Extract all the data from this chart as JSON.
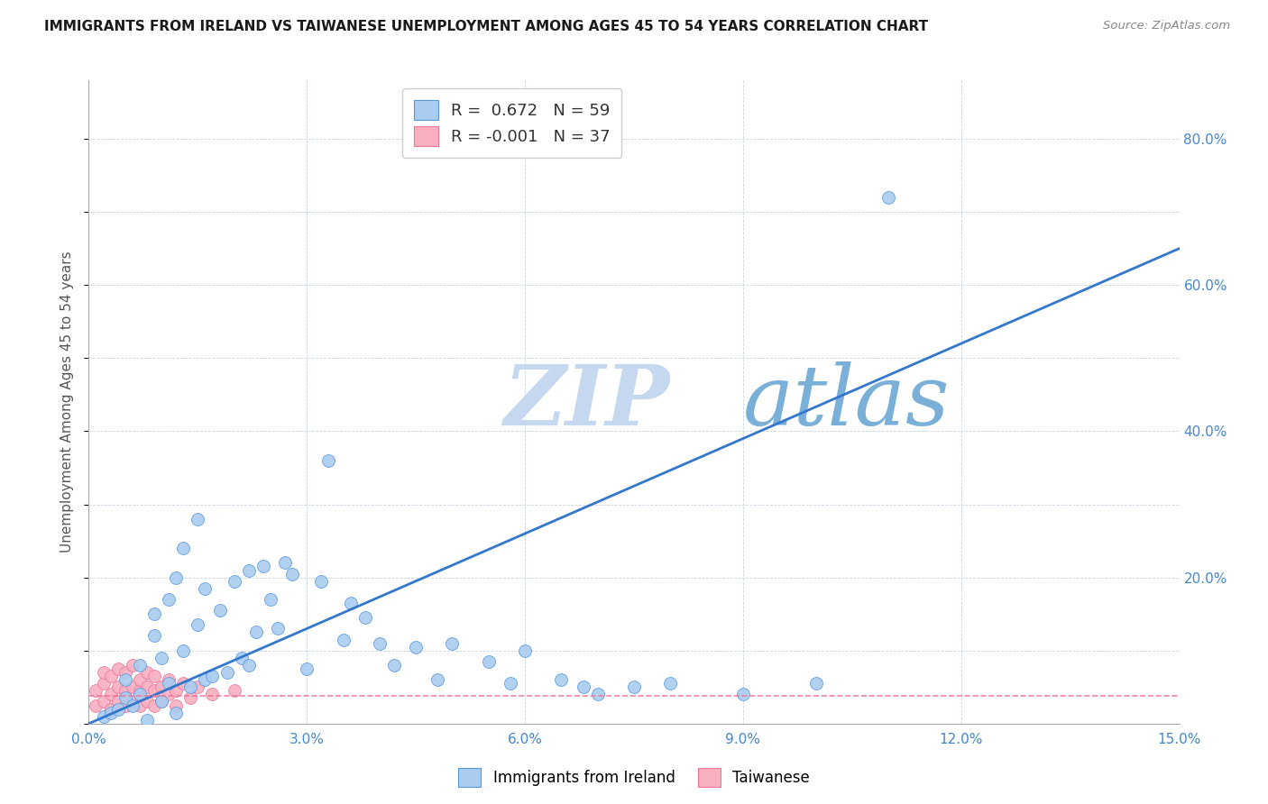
{
  "title": "IMMIGRANTS FROM IRELAND VS TAIWANESE UNEMPLOYMENT AMONG AGES 45 TO 54 YEARS CORRELATION CHART",
  "source": "Source: ZipAtlas.com",
  "ylabel": "Unemployment Among Ages 45 to 54 years",
  "xlim": [
    0.0,
    0.15
  ],
  "ylim": [
    0.0,
    0.88
  ],
  "xticks": [
    0.0,
    0.03,
    0.06,
    0.09,
    0.12,
    0.15
  ],
  "xtick_labels": [
    "0.0%",
    "3.0%",
    "6.0%",
    "9.0%",
    "12.0%",
    "15.0%"
  ],
  "yticks": [
    0.0,
    0.2,
    0.4,
    0.6,
    0.8
  ],
  "ytick_labels": [
    "",
    "20.0%",
    "40.0%",
    "60.0%",
    "80.0%"
  ],
  "blue_R": 0.672,
  "blue_N": 59,
  "pink_R": -0.001,
  "pink_N": 37,
  "blue_color": "#aaccf0",
  "blue_edge_color": "#5599dd",
  "blue_line_color": "#3377cc",
  "pink_color": "#f8b0c0",
  "pink_edge_color": "#ee7799",
  "pink_line_color": "#dd5577",
  "watermark_zip_color": "#c5d8ef",
  "watermark_atlas_color": "#7ab0d8",
  "blue_line_x0": 0.0,
  "blue_line_y0": 0.0,
  "blue_line_x1": 0.15,
  "blue_line_y1": 0.65,
  "pink_line_x0": 0.0,
  "pink_line_y0": 0.038,
  "pink_line_x1": 0.15,
  "pink_line_y1": 0.038,
  "blue_scatter_x": [
    0.002,
    0.003,
    0.004,
    0.005,
    0.005,
    0.006,
    0.007,
    0.007,
    0.008,
    0.009,
    0.009,
    0.01,
    0.01,
    0.011,
    0.011,
    0.012,
    0.012,
    0.013,
    0.013,
    0.014,
    0.015,
    0.015,
    0.016,
    0.016,
    0.017,
    0.018,
    0.019,
    0.02,
    0.021,
    0.022,
    0.022,
    0.023,
    0.024,
    0.025,
    0.026,
    0.027,
    0.028,
    0.03,
    0.032,
    0.033,
    0.035,
    0.036,
    0.038,
    0.04,
    0.042,
    0.045,
    0.048,
    0.05,
    0.055,
    0.058,
    0.06,
    0.065,
    0.068,
    0.07,
    0.075,
    0.08,
    0.09,
    0.1,
    0.11
  ],
  "blue_scatter_y": [
    0.01,
    0.015,
    0.02,
    0.035,
    0.06,
    0.025,
    0.04,
    0.08,
    0.005,
    0.12,
    0.15,
    0.03,
    0.09,
    0.055,
    0.17,
    0.015,
    0.2,
    0.1,
    0.24,
    0.05,
    0.135,
    0.28,
    0.06,
    0.185,
    0.065,
    0.155,
    0.07,
    0.195,
    0.09,
    0.08,
    0.21,
    0.125,
    0.215,
    0.17,
    0.13,
    0.22,
    0.205,
    0.075,
    0.195,
    0.36,
    0.115,
    0.165,
    0.145,
    0.11,
    0.08,
    0.105,
    0.06,
    0.11,
    0.085,
    0.055,
    0.1,
    0.06,
    0.05,
    0.04,
    0.05,
    0.055,
    0.04,
    0.055,
    0.72
  ],
  "pink_scatter_x": [
    0.001,
    0.001,
    0.002,
    0.002,
    0.002,
    0.003,
    0.003,
    0.003,
    0.004,
    0.004,
    0.004,
    0.005,
    0.005,
    0.005,
    0.006,
    0.006,
    0.006,
    0.007,
    0.007,
    0.007,
    0.008,
    0.008,
    0.008,
    0.009,
    0.009,
    0.009,
    0.01,
    0.01,
    0.011,
    0.011,
    0.012,
    0.012,
    0.013,
    0.014,
    0.015,
    0.017,
    0.02
  ],
  "pink_scatter_y": [
    0.025,
    0.045,
    0.03,
    0.055,
    0.07,
    0.02,
    0.04,
    0.065,
    0.03,
    0.05,
    0.075,
    0.025,
    0.045,
    0.07,
    0.03,
    0.05,
    0.08,
    0.025,
    0.045,
    0.06,
    0.03,
    0.05,
    0.07,
    0.025,
    0.045,
    0.065,
    0.03,
    0.05,
    0.04,
    0.06,
    0.025,
    0.045,
    0.055,
    0.035,
    0.05,
    0.04,
    0.045
  ]
}
